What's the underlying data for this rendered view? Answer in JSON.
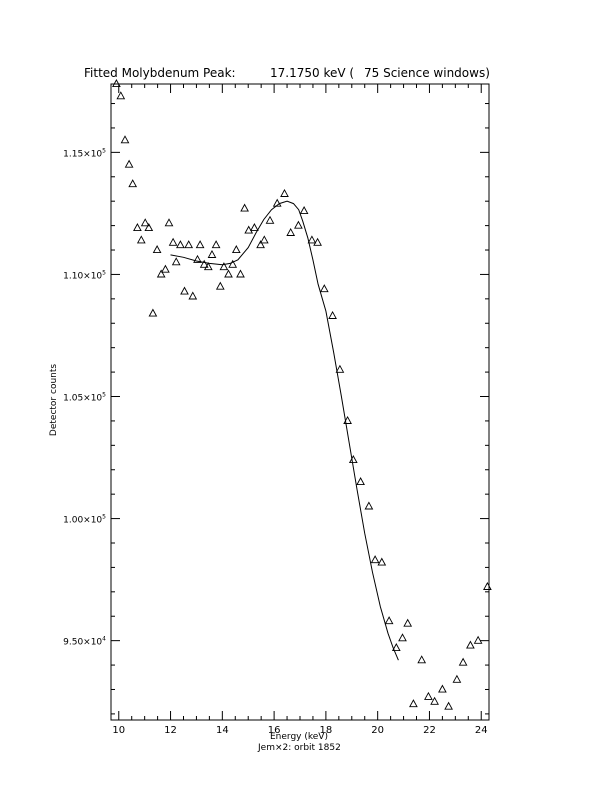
{
  "chart_data": {
    "type": "scatter",
    "title_left": "Fitted Molybdenum Peak:",
    "title_value": "17.1750 keV (",
    "title_right": "75 Science windows)",
    "xlabel": "Energy (keV)",
    "ylabel": "Detector counts",
    "footnote": "Jem×2: orbit 1852",
    "xlim": [
      9.7,
      24.3
    ],
    "ylim": [
      91750,
      117800
    ],
    "x_ticks": [
      10,
      12,
      14,
      16,
      18,
      20,
      22,
      24
    ],
    "x_tick_labels": [
      "10",
      "12",
      "14",
      "16",
      "18",
      "20",
      "22",
      "24"
    ],
    "y_ticks": [
      95000,
      100000,
      105000,
      110000,
      115000
    ],
    "y_tick_labels": [
      {
        "mantissa": "9.50×10",
        "exp": "4"
      },
      {
        "mantissa": "1.00×10",
        "exp": "5"
      },
      {
        "mantissa": "1.05×10",
        "exp": "5"
      },
      {
        "mantissa": "1.10×10",
        "exp": "5"
      },
      {
        "mantissa": "1.15×10",
        "exp": "5"
      }
    ],
    "grid": false,
    "marker": "open-triangle",
    "series": [
      {
        "points": [
          [
            9.91,
            117800
          ],
          [
            10.08,
            117300
          ],
          [
            10.24,
            115500
          ],
          [
            10.4,
            114500
          ],
          [
            10.54,
            113700
          ],
          [
            10.72,
            111900
          ],
          [
            10.87,
            111400
          ],
          [
            11.02,
            112100
          ],
          [
            11.16,
            111900
          ],
          [
            11.32,
            108400
          ],
          [
            11.48,
            111000
          ],
          [
            11.64,
            110000
          ],
          [
            11.8,
            110200
          ],
          [
            11.94,
            112100
          ],
          [
            12.1,
            111300
          ],
          [
            12.22,
            110500
          ],
          [
            12.38,
            111200
          ],
          [
            12.54,
            109300
          ],
          [
            12.7,
            111200
          ],
          [
            12.86,
            109100
          ],
          [
            13.04,
            110600
          ],
          [
            13.14,
            111200
          ],
          [
            13.3,
            110400
          ],
          [
            13.46,
            110300
          ],
          [
            13.6,
            110800
          ],
          [
            13.76,
            111200
          ],
          [
            13.92,
            109500
          ],
          [
            14.06,
            110300
          ],
          [
            14.24,
            110000
          ],
          [
            14.4,
            110400
          ],
          [
            14.54,
            111000
          ],
          [
            14.7,
            110000
          ],
          [
            14.86,
            112700
          ],
          [
            15.02,
            111800
          ],
          [
            15.24,
            111900
          ],
          [
            15.48,
            111200
          ],
          [
            15.62,
            111400
          ],
          [
            15.84,
            112200
          ],
          [
            16.12,
            112900
          ],
          [
            16.4,
            113300
          ],
          [
            16.64,
            111700
          ],
          [
            16.94,
            112000
          ],
          [
            17.16,
            112600
          ],
          [
            17.46,
            111400
          ],
          [
            17.68,
            111300
          ],
          [
            17.94,
            109400
          ],
          [
            18.26,
            108300
          ],
          [
            18.54,
            106100
          ],
          [
            18.84,
            104000
          ],
          [
            19.06,
            102400
          ],
          [
            19.34,
            101500
          ],
          [
            19.66,
            100500
          ],
          [
            19.9,
            98300
          ],
          [
            20.16,
            98200
          ],
          [
            20.44,
            95800
          ],
          [
            20.72,
            94700
          ],
          [
            20.96,
            95100
          ],
          [
            21.16,
            95700
          ],
          [
            21.38,
            92400
          ],
          [
            21.7,
            94200
          ],
          [
            21.96,
            92700
          ],
          [
            22.2,
            92500
          ],
          [
            22.5,
            93000
          ],
          [
            22.74,
            92300
          ],
          [
            23.06,
            93400
          ],
          [
            23.3,
            94100
          ],
          [
            23.58,
            94800
          ],
          [
            23.88,
            95000
          ],
          [
            24.24,
            97200
          ]
        ]
      }
    ],
    "fit_curve": [
      [
        12.0,
        110800
      ],
      [
        12.5,
        110700
      ],
      [
        13.0,
        110550
      ],
      [
        13.5,
        110450
      ],
      [
        14.0,
        110400
      ],
      [
        14.3,
        110450
      ],
      [
        14.6,
        110600
      ],
      [
        15.0,
        111100
      ],
      [
        15.3,
        111700
      ],
      [
        15.6,
        112250
      ],
      [
        15.9,
        112650
      ],
      [
        16.2,
        112900
      ],
      [
        16.5,
        113000
      ],
      [
        16.75,
        112900
      ],
      [
        16.95,
        112650
      ],
      [
        17.1,
        112200
      ],
      [
        17.3,
        111500
      ],
      [
        17.5,
        110600
      ],
      [
        17.7,
        109600
      ],
      [
        18.0,
        108500
      ],
      [
        18.3,
        106800
      ],
      [
        18.6,
        105000
      ],
      [
        18.9,
        103100
      ],
      [
        19.2,
        101200
      ],
      [
        19.5,
        99400
      ],
      [
        19.8,
        97800
      ],
      [
        20.1,
        96400
      ],
      [
        20.4,
        95300
      ],
      [
        20.6,
        94700
      ],
      [
        20.8,
        94200
      ]
    ]
  }
}
